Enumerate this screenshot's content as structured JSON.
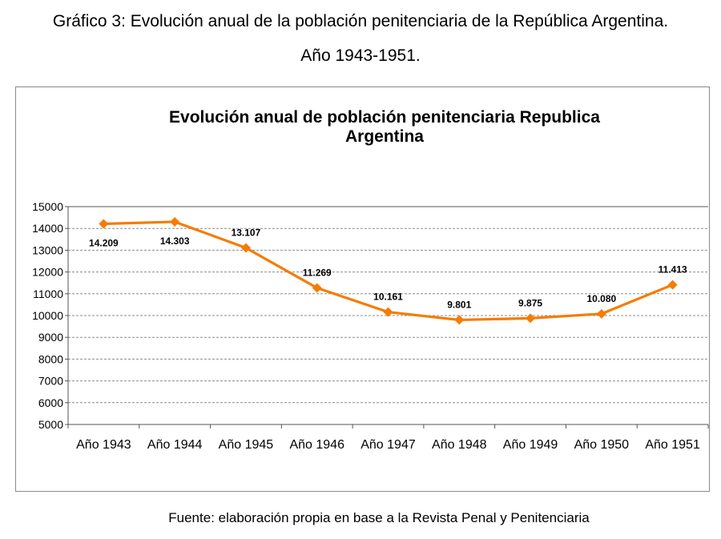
{
  "caption": {
    "line1": "Gráfico 3: Evolución anual de la población penitenciaria de la República Argentina.",
    "line2": "Año 1943-1951."
  },
  "source": "Fuente: elaboración propia en base a la Revista Penal y Penitenciaria",
  "chart_data": {
    "type": "line",
    "title": "Evolución anual de población penitenciaria  Republica Argentina",
    "xlabel": "",
    "ylabel": "",
    "categories": [
      "Año 1943",
      "Año 1944",
      "Año 1945",
      "Año 1946",
      "Año 1947",
      "Año 1948",
      "Año 1949",
      "Año 1950",
      "Año 1951"
    ],
    "series": [
      {
        "values": [
          14209,
          14303,
          13107,
          11269,
          10161,
          9801,
          9875,
          10080,
          11413
        ],
        "data_labels": [
          "14.209",
          "14.303",
          "13.107",
          "11.269",
          "10.161",
          "9.801",
          "9.875",
          "10.080",
          "11.413"
        ],
        "color": "#f57c00"
      }
    ],
    "ylim": [
      5000,
      15000
    ],
    "yticks": [
      15000,
      14000,
      13000,
      12000,
      11000,
      10000,
      9000,
      8000,
      7000,
      6000,
      5000
    ],
    "grid": "horizontal dashed",
    "legend": "none"
  }
}
